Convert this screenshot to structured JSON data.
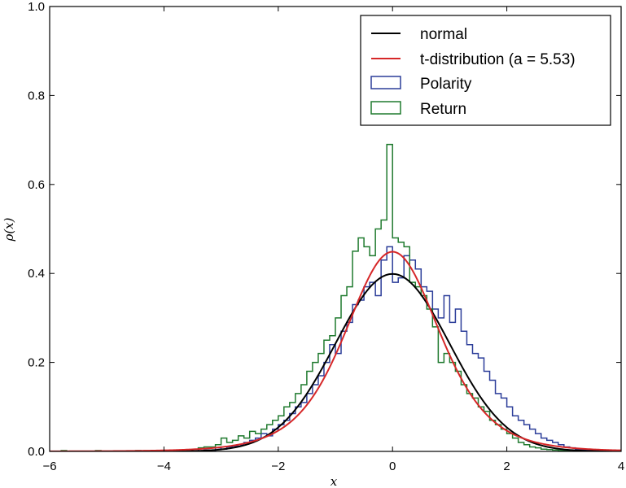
{
  "chart_data": {
    "type": "line",
    "title": "",
    "xlabel": "x",
    "ylabel": "ρ(x)",
    "xlim": [
      -6,
      4
    ],
    "ylim": [
      0,
      1.0
    ],
    "xticks": [
      -6,
      -4,
      -2,
      0,
      2,
      4
    ],
    "yticks": [
      0.0,
      0.2,
      0.4,
      0.6,
      0.8,
      1.0
    ],
    "xtick_labels": [
      "−6",
      "−4",
      "−2",
      "0",
      "2",
      "4"
    ],
    "ytick_labels": [
      "0.0",
      "0.2",
      "0.4",
      "0.6",
      "0.8",
      "1.0"
    ],
    "legend_position": "top-right",
    "series": [
      {
        "name": "normal",
        "kind": "curve",
        "function": "normal",
        "mu": 0,
        "sigma": 1,
        "x_range": [
          -4,
          4
        ],
        "color": "#000000"
      },
      {
        "name": "t-distribution (a = 5.53)",
        "kind": "curve",
        "function": "student_t",
        "nu": 5.53,
        "scale": 0.85,
        "x_range": [
          -6,
          4
        ],
        "color": "#d62728"
      },
      {
        "name": "Polarity",
        "kind": "histogram",
        "color": "#2b3d99",
        "bin_width": 0.1,
        "edges_start": -3.5,
        "values": [
          0.005,
          0,
          0.003,
          0,
          0.008,
          0.005,
          0.01,
          0.012,
          0.015,
          0.02,
          0.025,
          0.03,
          0.04,
          0.035,
          0.05,
          0.06,
          0.07,
          0.085,
          0.1,
          0.11,
          0.13,
          0.15,
          0.17,
          0.2,
          0.24,
          0.22,
          0.27,
          0.29,
          0.33,
          0.34,
          0.37,
          0.38,
          0.35,
          0.43,
          0.46,
          0.38,
          0.39,
          0.44,
          0.43,
          0.41,
          0.37,
          0.36,
          0.32,
          0.3,
          0.35,
          0.29,
          0.32,
          0.27,
          0.24,
          0.22,
          0.21,
          0.18,
          0.16,
          0.13,
          0.12,
          0.1,
          0.08,
          0.07,
          0.06,
          0.05,
          0.04,
          0.03,
          0.025,
          0.02,
          0.015,
          0.01,
          0.008,
          0.005,
          0.004,
          0.003,
          0.002,
          0.002,
          0,
          0.001,
          0.001
        ]
      },
      {
        "name": "Return",
        "kind": "histogram",
        "color": "#1f7a2e",
        "bin_width": 0.1,
        "edges_start": -3.5,
        "values": [
          0.005,
          0.008,
          0.01,
          0.01,
          0.015,
          0.03,
          0.02,
          0.025,
          0.035,
          0.03,
          0.045,
          0.04,
          0.05,
          0.06,
          0.07,
          0.08,
          0.1,
          0.11,
          0.13,
          0.15,
          0.18,
          0.2,
          0.22,
          0.25,
          0.26,
          0.3,
          0.35,
          0.37,
          0.45,
          0.48,
          0.46,
          0.44,
          0.5,
          0.52,
          0.69,
          0.48,
          0.47,
          0.46,
          0.38,
          0.37,
          0.35,
          0.32,
          0.28,
          0.2,
          0.22,
          0.2,
          0.18,
          0.15,
          0.13,
          0.12,
          0.1,
          0.09,
          0.07,
          0.06,
          0.05,
          0.04,
          0.03,
          0.02,
          0.015,
          0.01,
          0.008,
          0.005,
          0.004,
          0.003,
          0.002,
          0.002,
          0,
          0,
          0,
          0,
          0,
          0,
          0,
          0,
          0
        ]
      }
    ],
    "extra_marks": {
      "far_left_small_steps_x": [
        -5.8,
        -5.2,
        -4.5
      ],
      "far_left_small_steps_y": 0.002
    }
  }
}
